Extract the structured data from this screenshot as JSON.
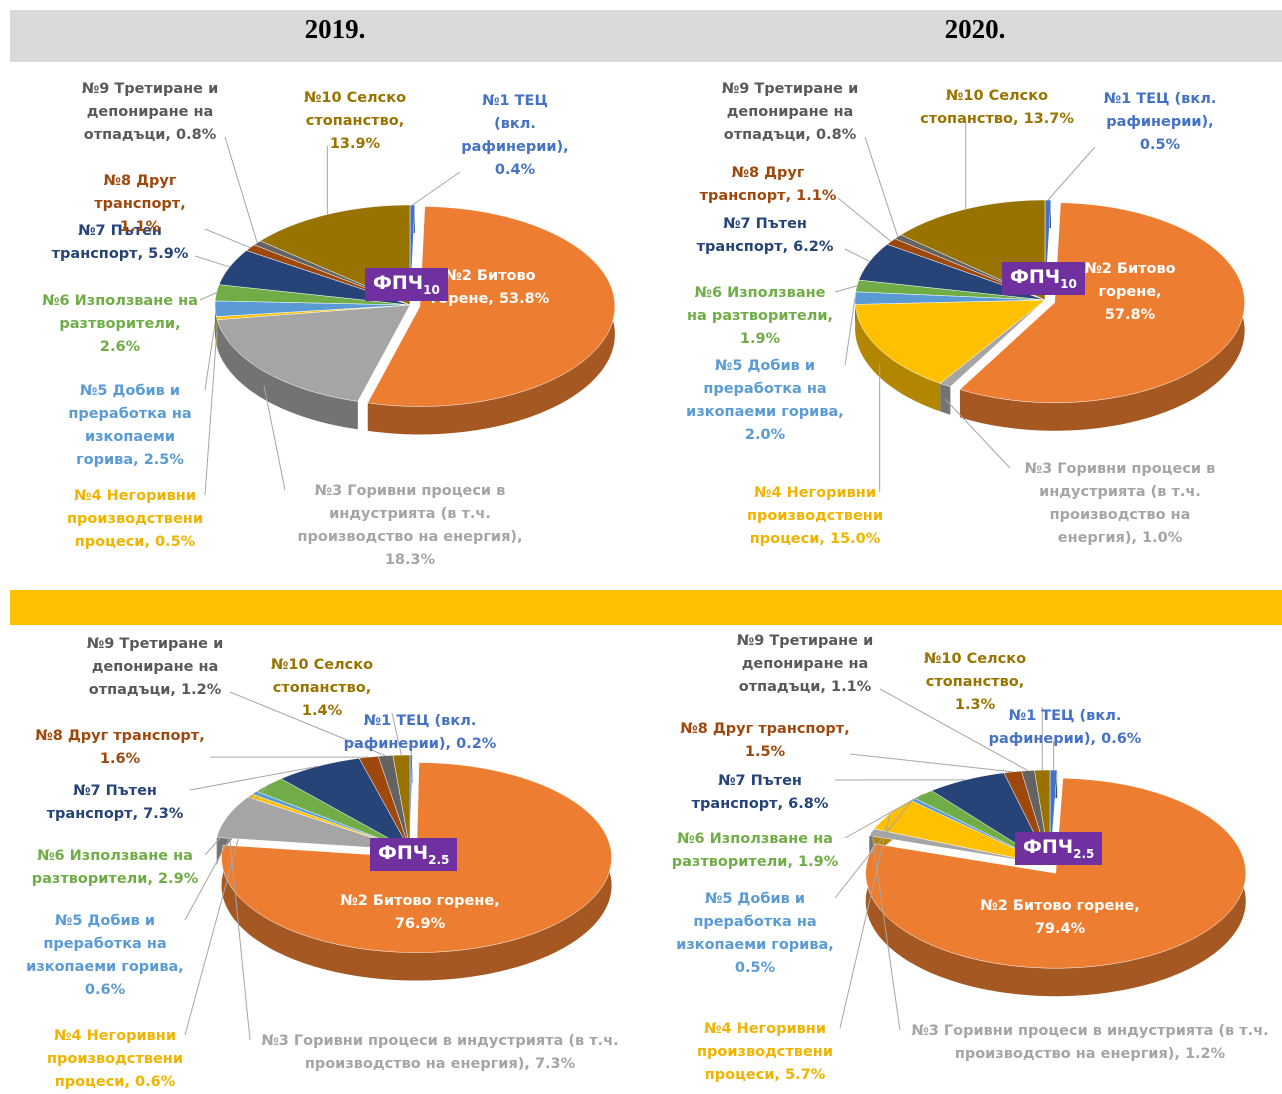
{
  "column_titles": [
    "2019.",
    "2020."
  ],
  "chart_data": [
    {
      "type": "pie",
      "center_label": {
        "text": "ФПЧ",
        "subscript": "10"
      },
      "categories": [
        "№1 ТЕЦ (вкл. рафинерии),",
        "№2 Битово горене,",
        "№3 Горивни процеси в индустрията (в т.ч. производство на енергия),",
        "№4 Негоривни производствени процеси,",
        "№5 Добив и преработка на изкопаеми горива,",
        "№6 Използване на разтворители,",
        "№7 Пътен транспорт,",
        "№8 Друг транспорт,",
        "№9 Третиране и депониране на отпадъци,",
        "№10 Селско стопанство,"
      ],
      "values": [
        0.4,
        53.8,
        18.3,
        0.5,
        2.5,
        2.6,
        5.9,
        1.1,
        0.8,
        13.9
      ],
      "value_labels": [
        "0.4%",
        "53.8%",
        "18.3%",
        "0.5%",
        "2.5%",
        "2.6%",
        "5.9%",
        "1.1%",
        "0.8%",
        "13.9%"
      ],
      "colors": [
        "#4472c4",
        "#ed7d31",
        "#a5a5a5",
        "#ffc000",
        "#5b9bd5",
        "#70ad47",
        "#264478",
        "#9e480e",
        "#636363",
        "#997300"
      ]
    },
    {
      "type": "pie",
      "center_label": {
        "text": "ФПЧ",
        "subscript": "10"
      },
      "categories": [
        "№1 ТЕЦ (вкл. рафинерии),",
        "№2 Битово горене,",
        "№3 Горивни процеси в индустрията (в т.ч. производство на енергия),",
        "№4 Негоривни производствени процеси,",
        "№5 Добив и преработка на изкопаеми горива,",
        "№6 Използване на разтворители,",
        "№7 Пътен транспорт,",
        "№8 Друг транспорт,",
        "№9 Третиране и депониране на отпадъци,",
        "№10 Селско стопанство,"
      ],
      "values": [
        0.5,
        57.8,
        1.0,
        15.0,
        2.0,
        1.9,
        6.2,
        1.1,
        0.8,
        13.7
      ],
      "value_labels": [
        "0.5%",
        "57.8%",
        "1.0%",
        "15.0%",
        "2.0%",
        "1.9%",
        "6.2%",
        "1.1%",
        "0.8%",
        "13.7%"
      ],
      "colors": [
        "#4472c4",
        "#ed7d31",
        "#a5a5a5",
        "#ffc000",
        "#5b9bd5",
        "#70ad47",
        "#264478",
        "#9e480e",
        "#636363",
        "#997300"
      ]
    },
    {
      "type": "pie",
      "center_label": {
        "text": "ФПЧ",
        "subscript": "2.5"
      },
      "categories": [
        "№1 ТЕЦ (вкл. рафинерии),",
        "№2 Битово горене,",
        "№3 Горивни процеси в индустрията (в т.ч. производство на енергия),",
        "№4 Негоривни производствени процеси,",
        "№5 Добив и преработка на изкопаеми горива,",
        "№6 Използване на разтворители,",
        "№7 Пътен транспорт,",
        "№8 Друг транспорт,",
        "№9 Третиране и депониране на отпадъци,",
        "№10 Селско стопанство,"
      ],
      "values": [
        0.2,
        76.9,
        7.3,
        0.6,
        0.6,
        2.9,
        7.3,
        1.6,
        1.2,
        1.4
      ],
      "value_labels": [
        "0.2%",
        "76.9%",
        "7.3%",
        "0.6%",
        "0.6%",
        "2.9%",
        "7.3%",
        "1.6%",
        "1.2%",
        "1.4%"
      ],
      "colors": [
        "#4472c4",
        "#ed7d31",
        "#a5a5a5",
        "#ffc000",
        "#5b9bd5",
        "#70ad47",
        "#264478",
        "#9e480e",
        "#636363",
        "#997300"
      ]
    },
    {
      "type": "pie",
      "center_label": {
        "text": "ФПЧ",
        "subscript": "2.5"
      },
      "categories": [
        "№1 ТЕЦ (вкл. рафинерии),",
        "№2 Битово горене,",
        "№3 Горивни процеси в индустрията (в т.ч. производство на енергия),",
        "№4 Негоривни производствени процеси,",
        "№5 Добив и преработка на изкопаеми горива,",
        "№6 Използване на разтворители,",
        "№7 Пътен транспорт,",
        "№8 Друг транспорт,",
        "№9 Третиране и депониране на отпадъци,",
        "№10 Селско стопанство,"
      ],
      "values": [
        0.6,
        79.4,
        1.2,
        5.7,
        0.5,
        1.9,
        6.8,
        1.5,
        1.1,
        1.3
      ],
      "value_labels": [
        "0.6%",
        "79.4%",
        "1.2%",
        "5.7%",
        "0.5%",
        "1.9%",
        "6.8%",
        "1.5%",
        "1.1%",
        "1.3%"
      ],
      "colors": [
        "#4472c4",
        "#ed7d31",
        "#a5a5a5",
        "#ffc000",
        "#5b9bd5",
        "#70ad47",
        "#264478",
        "#9e480e",
        "#636363",
        "#997300"
      ]
    }
  ]
}
